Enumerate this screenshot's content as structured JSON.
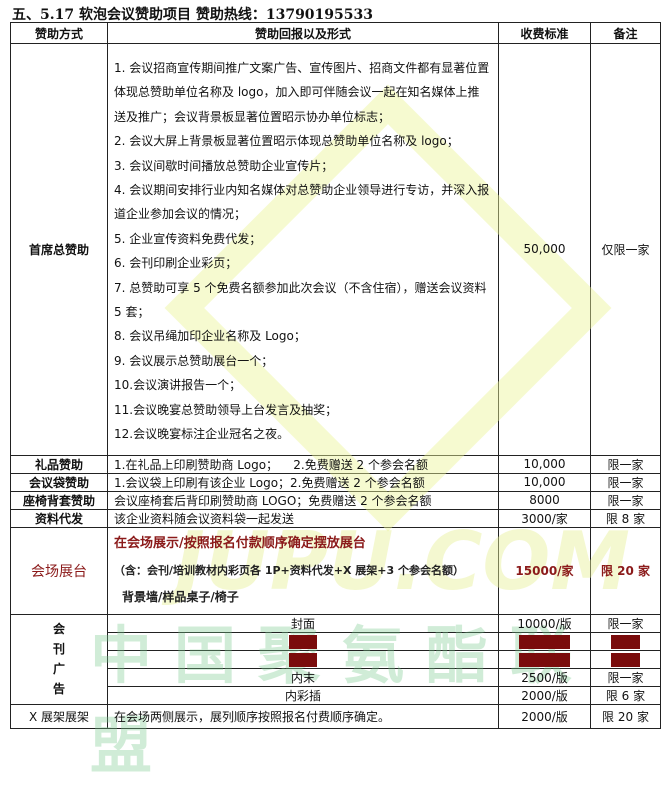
{
  "title": "五、5.17 软泡会议赞助项目  赞助热线：13790195533",
  "headers": [
    "赞助方式",
    "赞助回报以及形式",
    "收费标准",
    "备注"
  ],
  "main": {
    "name": "首席总赞助",
    "items": [
      "1. 会议招商宣传期间推广文案广告、宣传图片、招商文件都有显著位置体现总赞助单位名称及 logo，加入即可伴随会议一起在知名媒体上推送及推广；会议背景板显著位置昭示协办单位标志；",
      "2. 会议大屏上背景板显著位置昭示体现总赞助单位名称及 logo；",
      "3. 会议间歇时间播放总赞助企业宣传片；",
      "4. 会议期间安排行业内知名媒体对总赞助企业领导进行专访，并深入报道企业参加会议的情况；",
      "5. 企业宣传资料免费代发；",
      "6. 会刊印刷企业彩页；",
      "7. 总赞助可享 5 个免费名额参加此次会议（不含住宿），赠送会议资料 5 套；",
      "8. 会议吊绳加印企业名称及 Logo；",
      "9. 会议展示总赞助展台一个；",
      "10.会议演讲报告一个；",
      "11.会议晚宴总赞助领导上台发言及抽奖；",
      "12.会议晚宴标注企业冠名之夜。"
    ],
    "price": "50,000",
    "note": "仅限一家"
  },
  "rows": [
    {
      "name": "礼品赞助",
      "desc": "1.在礼品上印刷赞助商 Logo；    2.免费赠送 2 个参会名额",
      "price": "10,000",
      "note": "限一家"
    },
    {
      "name": "会议袋赞助",
      "desc": "1.会议袋上印刷有该企业 Logo；2.免费赠送 2 个参会名额",
      "price": "10,000",
      "note": "限一家"
    },
    {
      "name": "座椅背套赞助",
      "desc": "会议座椅套后背印刷赞助商 LOGO；免费赠送 2 个参会名额",
      "price": "8000",
      "note": "限一家"
    },
    {
      "name": "资料代发",
      "desc": "该企业资料随会议资料袋一起发送",
      "price": "3000/家",
      "note": "限 8 家"
    }
  ],
  "booth": {
    "name": "会场展台",
    "line1": "在会场展示/按照报名付款顺序确定摆放展台",
    "line2": "（含：会刊/培训教材内彩页各 1P+资料代发+X 展架+3 个参会名额）",
    "line3": "背景墙/样品桌子/椅子",
    "price": "15000/家",
    "note": "限 20 家"
  },
  "magazine": {
    "name": "会刊广告",
    "items": [
      {
        "label": "封面",
        "price": "10000/版",
        "note": "限一家",
        "booked": false
      },
      {
        "label": "封底",
        "price": "5000/版",
        "note": "已订",
        "booked": true
      },
      {
        "label": "封二",
        "price": "3000/版",
        "note": "已订",
        "booked": true
      },
      {
        "label": "内末",
        "price": "2500/版",
        "note": "限一家",
        "booked": false
      },
      {
        "label": "内彩插",
        "price": "2000/版",
        "note": "限 6 家",
        "booked": false
      }
    ]
  },
  "xstand": {
    "name": "X 展架展架",
    "desc": "在会场两侧展示，展列顺序按照报名付费顺序确定。",
    "price": "2000/版",
    "note": "限 20 家"
  },
  "watermark": {
    "text_cn": "中国聚氨酯联盟",
    "text_en": "JUPU.COM"
  },
  "colors": {
    "booth_text": "#8b1a1a",
    "booked_fill": "#7a0c0c"
  }
}
